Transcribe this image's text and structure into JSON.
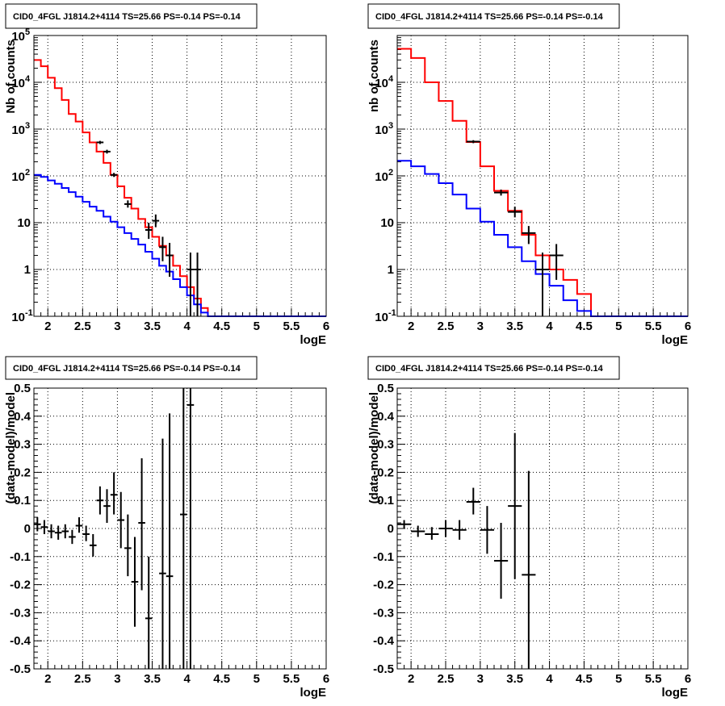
{
  "chart_data": [
    {
      "type": "histogram",
      "title": "CID0_4FGL J1814.2+4114 TS=25.66 PS=-0.14 PS=-0.14",
      "xlabel": "logE",
      "ylabel": "Nb of counts",
      "xlim": [
        1.8,
        6.0
      ],
      "ylim": [
        0.1,
        100000
      ],
      "log_y": true,
      "grid": true,
      "x_ticks": [
        "2",
        "2.5",
        "3",
        "3.5",
        "4",
        "4.5",
        "5",
        "5.5",
        "6"
      ],
      "y_ticks": [
        "10^-1",
        "1",
        "10",
        "10^2",
        "10^3",
        "10^4",
        "10^5"
      ],
      "series": [
        {
          "color": "#ff0000",
          "bin_edges": [
            1.8,
            1.9,
            2.0,
            2.1,
            2.2,
            2.3,
            2.4,
            2.5,
            2.6,
            2.7,
            2.8,
            2.9,
            3.0,
            3.1,
            3.2,
            3.3,
            3.4,
            3.5,
            3.6,
            3.7,
            3.8,
            3.9,
            4.0,
            4.1,
            4.2,
            4.3,
            4.4,
            4.5,
            6.0
          ],
          "values": [
            30000,
            22000,
            12500,
            7500,
            4200,
            2100,
            1450,
            850,
            520,
            330,
            190,
            105,
            60,
            34,
            20,
            12,
            8,
            5,
            3.2,
            2.0,
            1.2,
            0.72,
            0.42,
            0.24,
            0.15,
            0.1,
            0.1,
            0.1
          ]
        },
        {
          "color": "#0000ff",
          "bin_edges": [
            1.8,
            1.9,
            2.0,
            2.1,
            2.2,
            2.3,
            2.4,
            2.5,
            2.6,
            2.7,
            2.8,
            2.9,
            3.0,
            3.1,
            3.2,
            3.3,
            3.4,
            3.5,
            3.6,
            3.7,
            3.8,
            3.9,
            4.0,
            4.1,
            4.2,
            4.3,
            4.4,
            4.5,
            6.0
          ],
          "values": [
            105,
            95,
            80,
            68,
            55,
            45,
            36,
            28,
            22,
            18,
            13.5,
            10.5,
            8,
            6,
            4.5,
            3.4,
            2.4,
            1.7,
            1.2,
            0.9,
            0.62,
            0.42,
            0.28,
            0.18,
            0.12,
            0.1,
            0.1,
            0.1
          ]
        }
      ],
      "points": [
        {
          "x": 2.75,
          "y": 520,
          "xerr": 0.05,
          "ylo": 480,
          "yhi": 560
        },
        {
          "x": 2.85,
          "y": 330,
          "xerr": 0.05,
          "ylo": 300,
          "yhi": 362
        },
        {
          "x": 2.95,
          "y": 105,
          "xerr": 0.05,
          "ylo": 95,
          "yhi": 116
        },
        {
          "x": 3.15,
          "y": 25,
          "xerr": 0.05,
          "ylo": 21,
          "yhi": 30
        },
        {
          "x": 3.45,
          "y": 7,
          "xerr": 0.05,
          "ylo": 4.5,
          "yhi": 10
        },
        {
          "x": 3.55,
          "y": 11,
          "xerr": 0.05,
          "ylo": 8,
          "yhi": 15
        },
        {
          "x": 3.65,
          "y": 3,
          "xerr": 0.05,
          "ylo": 1.5,
          "yhi": 5
        },
        {
          "x": 3.75,
          "y": 2,
          "xerr": 0.05,
          "ylo": 0.7,
          "yhi": 3.7
        },
        {
          "x": 4.05,
          "y": 1,
          "xerr": 0.05,
          "ylo": 0.1,
          "yhi": 2.3
        },
        {
          "x": 4.15,
          "y": 1,
          "xerr": 0.05,
          "ylo": 0.1,
          "yhi": 2.3
        }
      ]
    },
    {
      "type": "histogram",
      "title": "CID0_4FGL J1814.2+4114 TS=25.66 PS=-0.14 PS=-0.14",
      "xlabel": "logE",
      "ylabel": "nb of counts",
      "xlim": [
        1.8,
        6.0
      ],
      "ylim": [
        0.1,
        100000
      ],
      "log_y": true,
      "grid": true,
      "x_ticks": [
        "2",
        "2.5",
        "3",
        "3.5",
        "4",
        "4.5",
        "5",
        "5.5",
        "6"
      ],
      "y_ticks": [
        "10^-1",
        "1",
        "10",
        "10^2",
        "10^3",
        "10^4"
      ],
      "series": [
        {
          "color": "#ff0000",
          "bin_edges": [
            1.8,
            2.0,
            2.2,
            2.4,
            2.6,
            2.8,
            3.0,
            3.2,
            3.4,
            3.6,
            3.8,
            4.0,
            4.2,
            4.4,
            4.6,
            6.0
          ],
          "values": [
            52000,
            33000,
            10000,
            4000,
            1500,
            530,
            160,
            48,
            18,
            5.5,
            2.0,
            1.0,
            0.6,
            0.3,
            0.1
          ]
        },
        {
          "color": "#0000ff",
          "bin_edges": [
            1.8,
            2.0,
            2.2,
            2.4,
            2.6,
            2.8,
            3.0,
            3.2,
            3.4,
            3.6,
            3.8,
            4.0,
            4.2,
            4.4,
            4.6,
            6.0
          ],
          "values": [
            210,
            160,
            110,
            70,
            40,
            20,
            10.5,
            5.5,
            3,
            1.5,
            0.8,
            0.45,
            0.22,
            0.13,
            0.1
          ]
        }
      ],
      "points": [
        {
          "x": 2.9,
          "y": 540,
          "xerr": 0.1,
          "ylo": 500,
          "yhi": 580
        },
        {
          "x": 3.3,
          "y": 44,
          "xerr": 0.1,
          "ylo": 38,
          "yhi": 51
        },
        {
          "x": 3.5,
          "y": 17,
          "xerr": 0.1,
          "ylo": 13,
          "yhi": 22
        },
        {
          "x": 3.7,
          "y": 6,
          "xerr": 0.1,
          "ylo": 3.5,
          "yhi": 8.5
        },
        {
          "x": 3.9,
          "y": 1,
          "xerr": 0.1,
          "ylo": 0.1,
          "yhi": 2.3
        },
        {
          "x": 4.1,
          "y": 2,
          "xerr": 0.1,
          "ylo": 0.6,
          "yhi": 3.5
        }
      ]
    },
    {
      "type": "scatter",
      "title": "CID0_4FGL J1814.2+4114 TS=25.66 PS=-0.14 PS=-0.14",
      "xlabel": "logE",
      "ylabel": "(data-model)/model",
      "xlim": [
        1.8,
        6.0
      ],
      "ylim": [
        -0.5,
        0.5
      ],
      "log_y": false,
      "grid": true,
      "x_ticks": [
        "2",
        "2.5",
        "3",
        "3.5",
        "4",
        "4.5",
        "5",
        "5.5",
        "6"
      ],
      "y_ticks": [
        "-0.5",
        "-0.4",
        "-0.3",
        "-0.2",
        "-0.1",
        "0",
        "0.1",
        "0.2",
        "0.3",
        "0.4",
        "0.5"
      ],
      "points": [
        {
          "x": 1.85,
          "y": 0.015,
          "xerr": 0.05,
          "ylo": -0.01,
          "yhi": 0.04
        },
        {
          "x": 1.95,
          "y": 0.005,
          "xerr": 0.05,
          "ylo": -0.02,
          "yhi": 0.03
        },
        {
          "x": 2.05,
          "y": -0.01,
          "xerr": 0.05,
          "ylo": -0.035,
          "yhi": 0.015
        },
        {
          "x": 2.15,
          "y": -0.015,
          "xerr": 0.05,
          "ylo": -0.04,
          "yhi": 0.01
        },
        {
          "x": 2.25,
          "y": -0.01,
          "xerr": 0.05,
          "ylo": -0.035,
          "yhi": 0.015
        },
        {
          "x": 2.35,
          "y": -0.03,
          "xerr": 0.05,
          "ylo": -0.055,
          "yhi": -0.005
        },
        {
          "x": 2.45,
          "y": 0.01,
          "xerr": 0.05,
          "ylo": -0.015,
          "yhi": 0.04
        },
        {
          "x": 2.55,
          "y": -0.02,
          "xerr": 0.05,
          "ylo": -0.045,
          "yhi": 0.01
        },
        {
          "x": 2.65,
          "y": -0.06,
          "xerr": 0.05,
          "ylo": -0.1,
          "yhi": -0.02
        },
        {
          "x": 2.75,
          "y": 0.1,
          "xerr": 0.05,
          "ylo": 0.05,
          "yhi": 0.15
        },
        {
          "x": 2.85,
          "y": 0.08,
          "xerr": 0.05,
          "ylo": 0.02,
          "yhi": 0.14
        },
        {
          "x": 2.95,
          "y": 0.12,
          "xerr": 0.05,
          "ylo": 0.05,
          "yhi": 0.2
        },
        {
          "x": 3.05,
          "y": 0.03,
          "xerr": 0.05,
          "ylo": -0.07,
          "yhi": 0.13
        },
        {
          "x": 3.15,
          "y": -0.07,
          "xerr": 0.05,
          "ylo": -0.17,
          "yhi": 0.05
        },
        {
          "x": 3.25,
          "y": -0.19,
          "xerr": 0.05,
          "ylo": -0.35,
          "yhi": -0.03
        },
        {
          "x": 3.35,
          "y": 0.02,
          "xerr": 0.05,
          "ylo": -0.22,
          "yhi": 0.25
        },
        {
          "x": 3.45,
          "y": -0.32,
          "xerr": 0.05,
          "ylo": -0.5,
          "yhi": -0.1
        },
        {
          "x": 3.65,
          "y": -0.16,
          "xerr": 0.05,
          "ylo": -0.5,
          "yhi": 0.32
        },
        {
          "x": 3.75,
          "y": -0.17,
          "xerr": 0.05,
          "ylo": -0.5,
          "yhi": 0.41
        },
        {
          "x": 3.95,
          "y": 0.05,
          "xerr": 0.05,
          "ylo": -0.5,
          "yhi": 0.5
        },
        {
          "x": 4.05,
          "y": 0.44,
          "xerr": 0.05,
          "ylo": -0.5,
          "yhi": 0.5
        }
      ]
    },
    {
      "type": "scatter",
      "title": "CID0_4FGL J1814.2+4114 TS=25.66 PS=-0.14 PS=-0.14",
      "xlabel": "logE",
      "ylabel": "(data-model)/model",
      "xlim": [
        1.8,
        6.0
      ],
      "ylim": [
        -0.5,
        0.5
      ],
      "log_y": false,
      "grid": true,
      "x_ticks": [
        "2",
        "2.5",
        "3",
        "3.5",
        "4",
        "4.5",
        "5",
        "5.5",
        "6"
      ],
      "y_ticks": [
        "-0.5",
        "-0.4",
        "-0.3",
        "-0.2",
        "-0.1",
        "0",
        "0.1",
        "0.2",
        "0.3",
        "0.4",
        "0.5"
      ],
      "points": [
        {
          "x": 1.9,
          "y": 0.015,
          "xerr": 0.1,
          "ylo": 0.0,
          "yhi": 0.03
        },
        {
          "x": 2.1,
          "y": -0.01,
          "xerr": 0.1,
          "ylo": -0.03,
          "yhi": 0.01
        },
        {
          "x": 2.3,
          "y": -0.02,
          "xerr": 0.1,
          "ylo": -0.04,
          "yhi": 0.005
        },
        {
          "x": 2.5,
          "y": 0.0,
          "xerr": 0.1,
          "ylo": -0.03,
          "yhi": 0.03
        },
        {
          "x": 2.7,
          "y": -0.005,
          "xerr": 0.1,
          "ylo": -0.04,
          "yhi": 0.03
        },
        {
          "x": 2.9,
          "y": 0.095,
          "xerr": 0.1,
          "ylo": 0.05,
          "yhi": 0.145
        },
        {
          "x": 3.1,
          "y": -0.005,
          "xerr": 0.1,
          "ylo": -0.09,
          "yhi": 0.08
        },
        {
          "x": 3.3,
          "y": -0.115,
          "xerr": 0.1,
          "ylo": -0.25,
          "yhi": 0.02
        },
        {
          "x": 3.5,
          "y": 0.08,
          "xerr": 0.1,
          "ylo": -0.18,
          "yhi": 0.34
        },
        {
          "x": 3.7,
          "y": -0.165,
          "xerr": 0.1,
          "ylo": -0.5,
          "yhi": 0.205
        }
      ]
    }
  ]
}
